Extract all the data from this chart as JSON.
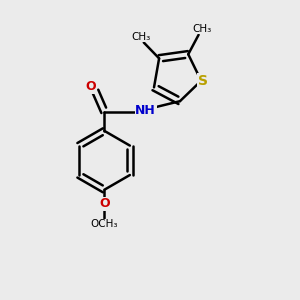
{
  "bg_color": "#ebebeb",
  "bond_color": "#000000",
  "bond_width": 1.8,
  "S_color": "#b8a000",
  "N_color": "#0000cc",
  "O_color": "#cc0000",
  "figsize": [
    3.0,
    3.0
  ],
  "dpi": 100,
  "xlim": [
    0,
    10
  ],
  "ylim": [
    0,
    10
  ],
  "label_fontsize": 9,
  "methyl_fontsize": 7.5,
  "och3_fontsize": 7.5
}
